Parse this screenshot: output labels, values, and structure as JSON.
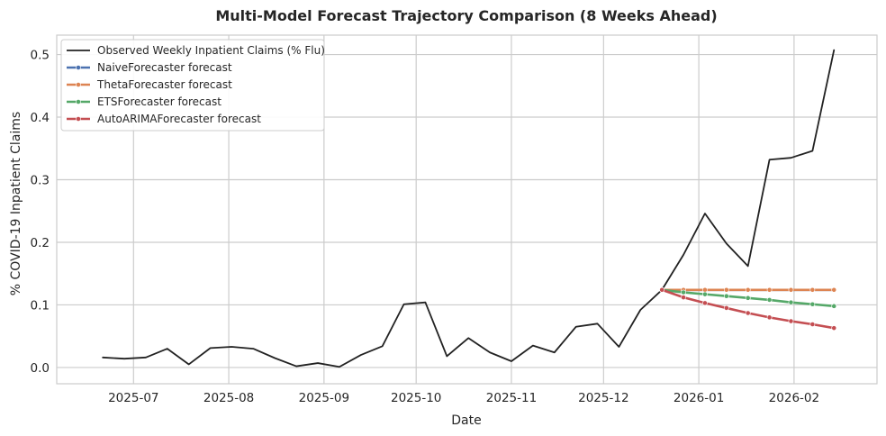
{
  "chart_data": {
    "type": "line",
    "title": "Multi-Model Forecast Trajectory Comparison (8 Weeks Ahead)",
    "xlabel": "Date",
    "ylabel": "% COVID-19 Inpatient Claims",
    "xlim": [
      "2025-06-06",
      "2026-02-28"
    ],
    "ylim": [
      -0.026,
      0.531
    ],
    "grid": true,
    "legend_position": "top-left",
    "x_ticks": [
      {
        "date": "2025-07-01",
        "label": "2025-07"
      },
      {
        "date": "2025-08-01",
        "label": "2025-08"
      },
      {
        "date": "2025-09-01",
        "label": "2025-09"
      },
      {
        "date": "2025-10-01",
        "label": "2025-10"
      },
      {
        "date": "2025-11-01",
        "label": "2025-11"
      },
      {
        "date": "2025-12-01",
        "label": "2025-12"
      },
      {
        "date": "2026-01-01",
        "label": "2026-01"
      },
      {
        "date": "2026-02-01",
        "label": "2026-02"
      }
    ],
    "y_ticks": [
      {
        "value": 0.0,
        "label": "0.0"
      },
      {
        "value": 0.1,
        "label": "0.1"
      },
      {
        "value": 0.2,
        "label": "0.2"
      },
      {
        "value": 0.3,
        "label": "0.3"
      },
      {
        "value": 0.4,
        "label": "0.4"
      },
      {
        "value": 0.5,
        "label": "0.5"
      }
    ],
    "series": [
      {
        "name": "Observed Weekly Inpatient Claims (% Flu)",
        "color": "#222222",
        "marker": false,
        "x": [
          "2025-06-21",
          "2025-06-28",
          "2025-07-05",
          "2025-07-12",
          "2025-07-19",
          "2025-07-26",
          "2025-08-02",
          "2025-08-09",
          "2025-08-16",
          "2025-08-23",
          "2025-08-30",
          "2025-09-06",
          "2025-09-13",
          "2025-09-20",
          "2025-09-27",
          "2025-10-04",
          "2025-10-11",
          "2025-10-18",
          "2025-10-25",
          "2025-11-01",
          "2025-11-08",
          "2025-11-15",
          "2025-11-22",
          "2025-11-29",
          "2025-12-06",
          "2025-12-13",
          "2025-12-20",
          "2025-12-27",
          "2026-01-03",
          "2026-01-10",
          "2026-01-17",
          "2026-01-24",
          "2026-01-31",
          "2026-02-07",
          "2026-02-14"
        ],
        "y": [
          0.016,
          0.014,
          0.016,
          0.03,
          0.005,
          0.031,
          0.033,
          0.03,
          0.015,
          0.002,
          0.007,
          0.001,
          0.02,
          0.034,
          0.101,
          0.104,
          0.018,
          0.047,
          0.024,
          0.01,
          0.035,
          0.024,
          0.065,
          0.07,
          0.033,
          0.092,
          0.124,
          0.18,
          0.246,
          0.198,
          0.162,
          0.332,
          0.335,
          0.346,
          0.507
        ]
      },
      {
        "name": "NaiveForecaster forecast",
        "color": "#4C72B0",
        "marker": true,
        "x": [
          "2025-12-20",
          "2025-12-27",
          "2026-01-03",
          "2026-01-10",
          "2026-01-17",
          "2026-01-24",
          "2026-01-31",
          "2026-02-07",
          "2026-02-14"
        ],
        "y": [
          0.124,
          0.124,
          0.124,
          0.124,
          0.124,
          0.124,
          0.124,
          0.124,
          0.124
        ]
      },
      {
        "name": "ThetaForecaster forecast",
        "color": "#DD8452",
        "marker": true,
        "x": [
          "2025-12-20",
          "2025-12-27",
          "2026-01-03",
          "2026-01-10",
          "2026-01-17",
          "2026-01-24",
          "2026-01-31",
          "2026-02-07",
          "2026-02-14"
        ],
        "y": [
          0.124,
          0.124,
          0.124,
          0.124,
          0.124,
          0.124,
          0.124,
          0.124,
          0.124
        ]
      },
      {
        "name": "ETSForecaster forecast",
        "color": "#55A868",
        "marker": true,
        "x": [
          "2025-12-20",
          "2025-12-27",
          "2026-01-03",
          "2026-01-10",
          "2026-01-17",
          "2026-01-24",
          "2026-01-31",
          "2026-02-07",
          "2026-02-14"
        ],
        "y": [
          0.124,
          0.12,
          0.117,
          0.114,
          0.111,
          0.108,
          0.104,
          0.101,
          0.098
        ]
      },
      {
        "name": "AutoARIMAForecaster forecast",
        "color": "#C44E52",
        "marker": true,
        "x": [
          "2025-12-20",
          "2025-12-27",
          "2026-01-03",
          "2026-01-10",
          "2026-01-17",
          "2026-01-24",
          "2026-01-31",
          "2026-02-07",
          "2026-02-14"
        ],
        "y": [
          0.124,
          0.112,
          0.103,
          0.095,
          0.087,
          0.08,
          0.074,
          0.069,
          0.063
        ]
      }
    ]
  }
}
